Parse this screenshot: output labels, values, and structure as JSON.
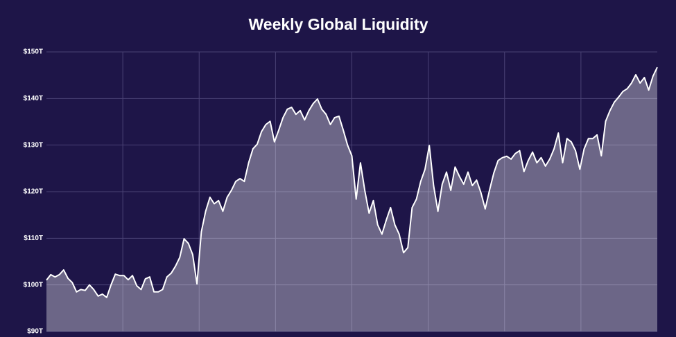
{
  "chart_data": {
    "type": "area",
    "title": "Weekly Global Liquidity",
    "values": [
      101,
      102.2,
      101.7,
      102.2,
      103.2,
      101.4,
      100.5,
      98.5,
      99,
      98.8,
      100,
      99,
      97.6,
      98,
      97.3,
      100,
      102.3,
      102,
      102,
      101.1,
      102,
      99.8,
      99,
      101.3,
      101.7,
      98.5,
      98.5,
      99,
      101.7,
      102.5,
      104,
      105.9,
      109.9,
      108.9,
      106.5,
      100.2,
      111.4,
      115.8,
      118.8,
      117.4,
      118.1,
      115.8,
      118.8,
      120.3,
      122.2,
      122.8,
      122.2,
      126.2,
      129.2,
      130.2,
      132.9,
      134.4,
      135.1,
      130.7,
      133.2,
      135.9,
      137.7,
      138.1,
      136.6,
      137.4,
      135.4,
      137.4,
      138.9,
      139.9,
      137.7,
      136.6,
      134.4,
      135.9,
      136.2,
      133.2,
      130,
      127.7,
      118.4,
      126.2,
      120.3,
      115.4,
      118.1,
      112.9,
      110.9,
      113.9,
      116.6,
      112.9,
      110.9,
      106.9,
      108,
      116.6,
      118.4,
      122.2,
      124.8,
      129.9,
      121.3,
      115.8,
      121.6,
      124.2,
      120.3,
      125.3,
      123.3,
      121.6,
      124.2,
      121.3,
      122.5,
      119.8,
      116.3,
      120.3,
      124,
      126.7,
      127.3,
      127.6,
      127,
      128.2,
      128.8,
      124.3,
      126.7,
      128.5,
      126.2,
      127.3,
      125.5,
      127,
      129.2,
      132.6,
      126.2,
      131.4,
      130.7,
      128.8,
      124.8,
      129.2,
      131.4,
      131.4,
      132.2,
      127.7,
      135.1,
      137.4,
      139.2,
      140.3,
      141.5,
      142.1,
      143.3,
      145.1,
      143.3,
      144.5,
      141.8,
      144.8,
      146.7
    ],
    "color": "#ffffff",
    "ylim": [
      90,
      150
    ],
    "yticks": [
      {
        "value": 90,
        "label": "$90T"
      },
      {
        "value": 100,
        "label": "$100T"
      },
      {
        "value": 110,
        "label": "$110T"
      },
      {
        "value": 120,
        "label": "$120T"
      },
      {
        "value": 130,
        "label": "$130T"
      },
      {
        "value": 140,
        "label": "$140T"
      },
      {
        "value": 150,
        "label": "$150T"
      }
    ],
    "grid": true
  }
}
